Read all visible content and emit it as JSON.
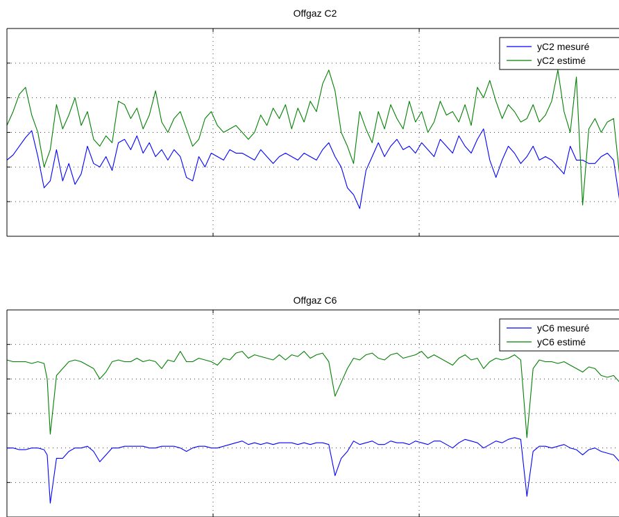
{
  "chart_data": [
    {
      "type": "line",
      "title": "Offgaz  C2",
      "xlabel": "",
      "ylabel": "",
      "xlim": [
        0,
        1000
      ],
      "ylim": [
        0,
        6
      ],
      "x_gridlines": [
        333,
        666
      ],
      "y_gridlines": [
        1,
        2,
        3,
        4,
        5
      ],
      "grid": true,
      "legend": "top-right",
      "series": [
        {
          "name": "yC2 mesuré",
          "color": "#0000ff",
          "x": [
            0,
            10,
            20,
            30,
            40,
            50,
            60,
            70,
            80,
            90,
            100,
            110,
            120,
            130,
            140,
            150,
            160,
            170,
            180,
            190,
            200,
            210,
            220,
            230,
            240,
            250,
            260,
            270,
            280,
            290,
            300,
            310,
            320,
            330,
            340,
            350,
            360,
            370,
            380,
            390,
            400,
            410,
            420,
            430,
            440,
            450,
            460,
            470,
            480,
            490,
            500,
            510,
            520,
            530,
            540,
            550,
            560,
            570,
            580,
            590,
            600,
            610,
            620,
            630,
            640,
            650,
            660,
            670,
            680,
            690,
            700,
            710,
            720,
            730,
            740,
            750,
            760,
            770,
            780,
            790,
            800,
            810,
            820,
            830,
            840,
            850,
            860,
            870,
            880,
            890,
            900,
            910,
            920,
            930,
            940,
            950,
            960,
            970,
            980,
            990,
            1000
          ],
          "values": [
            2.2,
            2.35,
            2.6,
            2.85,
            3.05,
            2.3,
            1.4,
            1.6,
            2.5,
            1.6,
            2.1,
            1.5,
            1.8,
            2.6,
            2.1,
            2.0,
            2.3,
            1.9,
            2.7,
            2.8,
            2.5,
            2.9,
            2.4,
            2.7,
            2.3,
            2.5,
            2.2,
            2.5,
            2.3,
            1.7,
            1.6,
            2.3,
            2.0,
            2.4,
            2.3,
            2.2,
            2.5,
            2.4,
            2.4,
            2.3,
            2.2,
            2.5,
            2.3,
            2.1,
            2.3,
            2.4,
            2.3,
            2.2,
            2.4,
            2.3,
            2.2,
            2.5,
            2.7,
            2.3,
            2.0,
            1.4,
            1.2,
            0.8,
            1.9,
            2.3,
            2.7,
            2.3,
            2.6,
            2.8,
            2.5,
            2.6,
            2.4,
            2.7,
            2.5,
            2.3,
            2.8,
            2.6,
            2.4,
            2.9,
            2.6,
            2.4,
            2.8,
            3.1,
            2.2,
            1.7,
            2.2,
            2.6,
            2.4,
            2.1,
            2.3,
            2.6,
            2.2,
            2.3,
            2.2,
            2.0,
            1.8,
            2.6,
            2.2,
            2.2,
            2.1,
            2.1,
            2.3,
            2.4,
            2.2,
            1.0,
            1.3
          ]
        },
        {
          "name": "yC2 estimé",
          "color": "#008000",
          "x": [
            0,
            10,
            20,
            30,
            40,
            50,
            60,
            70,
            80,
            90,
            100,
            110,
            120,
            130,
            140,
            150,
            160,
            170,
            180,
            190,
            200,
            210,
            220,
            230,
            240,
            250,
            260,
            270,
            280,
            290,
            300,
            310,
            320,
            330,
            340,
            350,
            360,
            370,
            380,
            390,
            400,
            410,
            420,
            430,
            440,
            450,
            460,
            470,
            480,
            490,
            500,
            510,
            520,
            530,
            540,
            550,
            560,
            570,
            580,
            590,
            600,
            610,
            620,
            630,
            640,
            650,
            660,
            670,
            680,
            690,
            700,
            710,
            720,
            730,
            740,
            750,
            760,
            770,
            780,
            790,
            800,
            810,
            820,
            830,
            840,
            850,
            860,
            870,
            880,
            890,
            900,
            910,
            920,
            930,
            940,
            950,
            960,
            970,
            980,
            990,
            1000
          ],
          "values": [
            3.2,
            3.6,
            4.1,
            4.3,
            3.5,
            3.0,
            2.0,
            2.5,
            3.8,
            3.1,
            3.5,
            4.0,
            3.2,
            3.6,
            2.8,
            2.6,
            2.9,
            2.7,
            3.9,
            3.8,
            3.4,
            3.7,
            3.1,
            3.5,
            4.2,
            3.3,
            3.0,
            3.4,
            3.6,
            3.1,
            2.6,
            2.8,
            3.4,
            3.6,
            3.2,
            3.0,
            3.1,
            3.2,
            3.0,
            2.8,
            3.0,
            3.5,
            3.2,
            3.7,
            3.4,
            3.8,
            3.1,
            3.7,
            3.3,
            3.9,
            3.6,
            4.4,
            4.8,
            4.2,
            3.0,
            2.6,
            2.1,
            3.6,
            3.1,
            2.7,
            3.6,
            3.1,
            3.8,
            3.4,
            3.1,
            3.9,
            3.3,
            3.6,
            3.0,
            3.3,
            3.9,
            3.5,
            3.6,
            3.3,
            3.8,
            3.2,
            4.3,
            4.0,
            4.5,
            3.9,
            3.4,
            3.8,
            3.6,
            3.3,
            3.4,
            3.8,
            3.3,
            3.5,
            3.9,
            4.8,
            3.6,
            3.0,
            4.6,
            0.9,
            3.1,
            3.4,
            3.0,
            3.3,
            3.4,
            1.7,
            1.8
          ]
        }
      ]
    },
    {
      "type": "line",
      "title": "Offgaz  C6",
      "xlabel": "",
      "ylabel": "",
      "xlim": [
        0,
        1000
      ],
      "ylim": [
        0,
        6
      ],
      "x_gridlines": [
        333,
        666
      ],
      "y_gridlines": [
        1,
        2,
        3,
        4,
        5
      ],
      "grid": true,
      "legend": "top-right",
      "series": [
        {
          "name": "yC6 mesuré",
          "color": "#0000ff",
          "x": [
            0,
            10,
            20,
            30,
            40,
            50,
            60,
            65,
            70,
            80,
            90,
            100,
            110,
            120,
            130,
            140,
            150,
            160,
            170,
            180,
            190,
            200,
            210,
            220,
            230,
            240,
            250,
            260,
            270,
            280,
            290,
            300,
            310,
            320,
            330,
            340,
            350,
            360,
            370,
            380,
            390,
            400,
            410,
            420,
            430,
            440,
            450,
            460,
            470,
            480,
            490,
            500,
            510,
            520,
            530,
            540,
            550,
            560,
            570,
            580,
            590,
            600,
            610,
            620,
            630,
            640,
            650,
            660,
            670,
            680,
            690,
            700,
            710,
            720,
            730,
            740,
            750,
            760,
            770,
            780,
            790,
            800,
            810,
            820,
            830,
            840,
            850,
            860,
            870,
            880,
            890,
            900,
            910,
            920,
            930,
            940,
            950,
            960,
            970,
            980,
            990
          ],
          "values": [
            2.0,
            2.0,
            1.95,
            1.95,
            2.0,
            2.0,
            1.95,
            1.8,
            0.4,
            1.7,
            1.7,
            1.9,
            2.0,
            2.0,
            2.05,
            1.9,
            1.6,
            1.8,
            2.0,
            2.0,
            2.05,
            2.05,
            2.05,
            2.05,
            2.0,
            2.0,
            2.05,
            2.05,
            2.05,
            2.0,
            1.9,
            2.0,
            2.05,
            2.05,
            2.0,
            2.0,
            2.05,
            2.1,
            2.15,
            2.2,
            2.1,
            2.15,
            2.1,
            2.15,
            2.1,
            2.15,
            2.15,
            2.15,
            2.1,
            2.15,
            2.1,
            2.15,
            2.15,
            2.1,
            1.2,
            1.7,
            1.9,
            2.2,
            2.1,
            2.15,
            2.2,
            2.1,
            2.1,
            2.2,
            2.15,
            2.15,
            2.1,
            2.2,
            2.15,
            2.1,
            2.2,
            2.2,
            2.1,
            2.0,
            2.15,
            2.25,
            2.2,
            2.15,
            2.0,
            2.1,
            2.2,
            2.15,
            2.25,
            2.3,
            2.25,
            0.6,
            1.9,
            2.05,
            2.05,
            2.0,
            2.05,
            2.1,
            2.0,
            1.95,
            1.8,
            1.95,
            2.0,
            1.9,
            1.85,
            1.8,
            1.6
          ]
        },
        {
          "name": "yC6 estimé",
          "color": "#008000",
          "x": [
            0,
            10,
            20,
            30,
            40,
            50,
            60,
            65,
            70,
            80,
            90,
            100,
            110,
            120,
            130,
            140,
            150,
            160,
            170,
            180,
            190,
            200,
            210,
            220,
            230,
            240,
            250,
            260,
            270,
            280,
            290,
            300,
            310,
            320,
            330,
            340,
            350,
            360,
            370,
            380,
            390,
            400,
            410,
            420,
            430,
            440,
            450,
            460,
            470,
            480,
            490,
            500,
            510,
            520,
            530,
            540,
            550,
            560,
            570,
            580,
            590,
            600,
            610,
            620,
            630,
            640,
            650,
            660,
            670,
            680,
            690,
            700,
            710,
            720,
            730,
            740,
            750,
            760,
            770,
            780,
            790,
            800,
            810,
            820,
            830,
            840,
            850,
            860,
            870,
            880,
            890,
            900,
            910,
            920,
            930,
            940,
            950,
            960,
            970,
            980,
            990
          ],
          "values": [
            4.55,
            4.5,
            4.5,
            4.5,
            4.45,
            4.5,
            4.45,
            4.0,
            2.4,
            4.1,
            4.3,
            4.5,
            4.55,
            4.5,
            4.4,
            4.3,
            4.0,
            4.2,
            4.5,
            4.55,
            4.5,
            4.5,
            4.6,
            4.5,
            4.55,
            4.5,
            4.3,
            4.55,
            4.5,
            4.8,
            4.5,
            4.5,
            4.6,
            4.55,
            4.5,
            4.4,
            4.6,
            4.55,
            4.75,
            4.8,
            4.6,
            4.7,
            4.65,
            4.6,
            4.55,
            4.7,
            4.55,
            4.7,
            4.65,
            4.8,
            4.6,
            4.7,
            4.75,
            4.5,
            3.5,
            3.9,
            4.3,
            4.6,
            4.55,
            4.7,
            4.75,
            4.6,
            4.55,
            4.7,
            4.75,
            4.6,
            4.65,
            4.7,
            4.8,
            4.6,
            4.7,
            4.6,
            4.5,
            4.4,
            4.6,
            4.7,
            4.55,
            4.6,
            4.3,
            4.5,
            4.6,
            4.55,
            4.6,
            4.7,
            4.55,
            2.3,
            4.3,
            4.55,
            4.5,
            4.5,
            4.45,
            4.5,
            4.4,
            4.3,
            4.2,
            4.35,
            4.3,
            4.1,
            4.05,
            4.1,
            3.9
          ]
        }
      ]
    }
  ]
}
